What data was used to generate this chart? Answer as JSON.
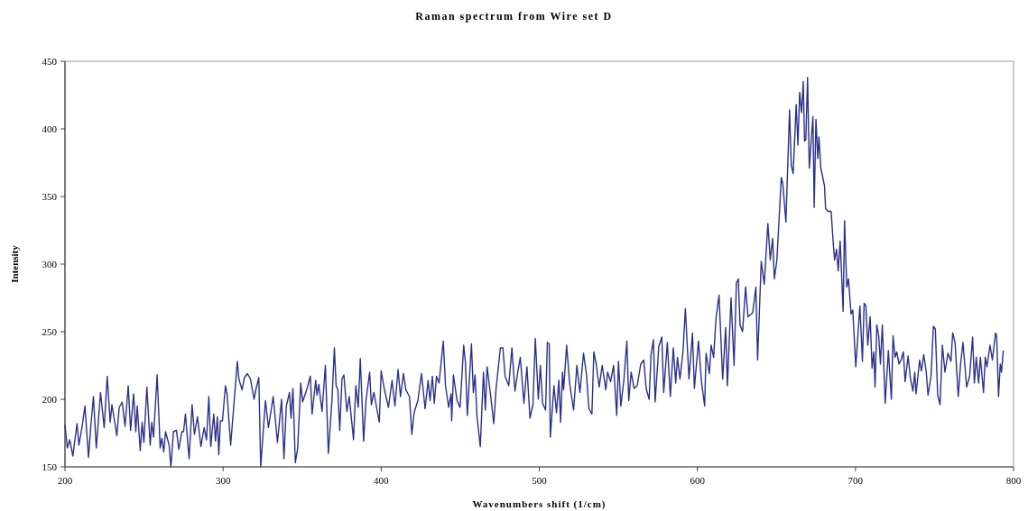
{
  "chart_data": {
    "type": "line",
    "title": "Raman spectrum from Wire set D",
    "xlabel": "Wavenumbers shift (1/cm)",
    "ylabel": "Intensity",
    "x": [
      200,
      201.5,
      203,
      205,
      207.6,
      208.8,
      211,
      212.6,
      214.9,
      216.4,
      218,
      219.8,
      222.5,
      224.8,
      226.7,
      228.6,
      229.7,
      232.8,
      234.3,
      236.2,
      238,
      240,
      241.5,
      243.4,
      244.8,
      245.7,
      247.6,
      248.8,
      249.9,
      251.8,
      253.9,
      254.9,
      256,
      258.3,
      260.2,
      261.3,
      262.5,
      263.6,
      265.9,
      267,
      268.6,
      270.5,
      272,
      273.9,
      275,
      276.2,
      278.5,
      280.4,
      281.9,
      283.8,
      286,
      288,
      289.5,
      291,
      292.2,
      294.1,
      295.2,
      296.4,
      297.3,
      298.3,
      299.6,
      301.5,
      302.5,
      304.8,
      306.7,
      309,
      310,
      312,
      313.5,
      315.4,
      317.3,
      319.6,
      320.7,
      322.6,
      323.8,
      324.9,
      326.8,
      328.7,
      331.7,
      334.4,
      337,
      338.5,
      340,
      342,
      343,
      344.2,
      345.7,
      347.2,
      349.1,
      350.3,
      352.9,
      355.2,
      356.3,
      358.6,
      359.4,
      360.5,
      362.6,
      364.7,
      366.6,
      368.9,
      370.4,
      371.5,
      372.6,
      373.8,
      375.2,
      376.4,
      378.3,
      379.8,
      382.5,
      384,
      385.5,
      386.8,
      388.9,
      390.4,
      392.7,
      393.8,
      395.4,
      398.8,
      400,
      401.9,
      404.6,
      406.9,
      408.7,
      410.7,
      412.2,
      414.1,
      415.6,
      417.9,
      419.4,
      420.8,
      423.2,
      425.5,
      427.8,
      429.7,
      430.9,
      432.4,
      433.6,
      435,
      436.6,
      439.3,
      440.7,
      442.7,
      444.2,
      444.6,
      445.7,
      448,
      449.9,
      452.2,
      453.3,
      454.5,
      457.1,
      458.3,
      459.4,
      460.6,
      462.7,
      464.7,
      465.9,
      467,
      469.3,
      471.2,
      472.7,
      475.4,
      477,
      478.4,
      480.7,
      482.7,
      484.6,
      486.1,
      488,
      490.3,
      492.2,
      494.1,
      496,
      497.5,
      499.4,
      500.7,
      502.1,
      504,
      505.1,
      506.3,
      507,
      509.3,
      510.9,
      512.4,
      513.5,
      514.7,
      515.4,
      517.3,
      519.2,
      521.7,
      523.8,
      525.7,
      528,
      529.9,
      531.4,
      533.3,
      534.5,
      536,
      537.9,
      539.8,
      542.1,
      543.2,
      545.1,
      547,
      549,
      550.1,
      551.6,
      553.5,
      555.4,
      556.6,
      558.1,
      560,
      561.9,
      564.2,
      566.1,
      567.6,
      569.5,
      570.7,
      572.2,
      573.3,
      575.6,
      577.5,
      578.7,
      581,
      582.9,
      584.8,
      586.3,
      587.4,
      589,
      590.9,
      592.4,
      594.7,
      596.9,
      598.1,
      600.7,
      602.6,
      604.6,
      605.5,
      607.6,
      608.7,
      610.3,
      611.8,
      613.7,
      616,
      617.9,
      619,
      621.3,
      623.2,
      624.7,
      625.9,
      627,
      628.6,
      630.5,
      632,
      635,
      637,
      638.1,
      640.4,
      642.3,
      644.6,
      646.1,
      647.6,
      648.7,
      650.3,
      653.1,
      654.1,
      656,
      658.3,
      659.4,
      660.6,
      662.5,
      663.6,
      664.7,
      665.9,
      667,
      667.8,
      668.6,
      669.7,
      670.8,
      673.1,
      673.9,
      675,
      676.2,
      676.9,
      678.1,
      680.4,
      681.1,
      682.7,
      684.6,
      686.1,
      686.8,
      688,
      689.1,
      690.3,
      691,
      692.2,
      693.1,
      694.5,
      695.6,
      697.2,
      698.3,
      700.2,
      702.8,
      704.4,
      705.5,
      706.6,
      707.8,
      709.3,
      710.5,
      711.6,
      712.4,
      713.5,
      714.7,
      715.8,
      717,
      718.8,
      720.8,
      722.7,
      723.8,
      725,
      726.1,
      727.6,
      728.8,
      730.3,
      731.4,
      733.3,
      734.8,
      736.4,
      737.5,
      738.3,
      740.6,
      741.7,
      743.2,
      744.8,
      745.9,
      747.8,
      749.3,
      750.5,
      752,
      753.5,
      755,
      756.6,
      758.5,
      760.4,
      761.5,
      763,
      765,
      766.5,
      768,
      770.3,
      772.2,
      774.1,
      775.2,
      776.4,
      777.9,
      779,
      781,
      782.1,
      783.2,
      785.1,
      786.6,
      788.6,
      789.3,
      790.5,
      791.6,
      792.4,
      793.5
    ],
    "series": [
      {
        "color": "#2b2f8f",
        "values": [
          181,
          164,
          170,
          158,
          182,
          166,
          181,
          195,
          157,
          181,
          202,
          164,
          205,
          179,
          217,
          183,
          196,
          173,
          194,
          198,
          180,
          210,
          177,
          204,
          176,
          195,
          162,
          183,
          168,
          209,
          166,
          183,
          172,
          218,
          164,
          171,
          161,
          176,
          166,
          150,
          176,
          177,
          163,
          176,
          176,
          189,
          156,
          196,
          174,
          187,
          165,
          179,
          170,
          202,
          165,
          189,
          169,
          187,
          159,
          184,
          184,
          210,
          204,
          166,
          194,
          228,
          215,
          207,
          216,
          219,
          215,
          200,
          207,
          216,
          150,
          168,
          199,
          179,
          202,
          168,
          200,
          156,
          195,
          205,
          186,
          208,
          153,
          164,
          212,
          198,
          207,
          217,
          189,
          214,
          203,
          211,
          191,
          225,
          160,
          200,
          238,
          210,
          207,
          177,
          215,
          218,
          191,
          202,
          170,
          210,
          194,
          230,
          169,
          199,
          220,
          196,
          205,
          183,
          221,
          208,
          194,
          214,
          195,
          222,
          202,
          219,
          207,
          202,
          174,
          190,
          199,
          219,
          193,
          214,
          199,
          217,
          197,
          217,
          212,
          243,
          210,
          194,
          204,
          184,
          218,
          199,
          194,
          240,
          227,
          188,
          241,
          205,
          218,
          187,
          165,
          220,
          192,
          224,
          202,
          182,
          208,
          238,
          238,
          217,
          210,
          238,
          206,
          218,
          231,
          197,
          224,
          186,
          196,
          245,
          200,
          225,
          197,
          192,
          242,
          241,
          172,
          210,
          190,
          214,
          183,
          220,
          207,
          240,
          212,
          192,
          225,
          205,
          234,
          218,
          193,
          189,
          235,
          226,
          209,
          225,
          207,
          220,
          213,
          225,
          188,
          228,
          195,
          214,
          243,
          199,
          220,
          208,
          210,
          226,
          229,
          208,
          200,
          233,
          244,
          198,
          239,
          246,
          205,
          242,
          202,
          238,
          212,
          231,
          215,
          235,
          267,
          215,
          249,
          208,
          243,
          213,
          195,
          234,
          219,
          240,
          231,
          260,
          277,
          215,
          253,
          210,
          275,
          225,
          286,
          289,
          255,
          250,
          283,
          261,
          264,
          283,
          229,
          302,
          285,
          330,
          303,
          319,
          289,
          303,
          364,
          359,
          331,
          414,
          373,
          367,
          418,
          388,
          427,
          412,
          435,
          391,
          392,
          438,
          371,
          409,
          342,
          407,
          378,
          394,
          371,
          358,
          341,
          339,
          339,
          313,
          303,
          311,
          295,
          317,
          299,
          265,
          332,
          283,
          289,
          263,
          266,
          224,
          269,
          228,
          271,
          269,
          240,
          261,
          223,
          235,
          209,
          255,
          247,
          226,
          255,
          197,
          236,
          200,
          247,
          231,
          235,
          226,
          229,
          235,
          213,
          232,
          215,
          206,
          220,
          204,
          229,
          221,
          233,
          220,
          203,
          217,
          254,
          252,
          203,
          196,
          240,
          220,
          234,
          228,
          249,
          242,
          202,
          226,
          242,
          209,
          217,
          246,
          212,
          231,
          212,
          231,
          205,
          231,
          224,
          240,
          229,
          249,
          247,
          202,
          226,
          220,
          236
        ]
      }
    ],
    "xlim": [
      200,
      800
    ],
    "xticks": [
      200,
      300,
      400,
      500,
      600,
      700,
      800
    ],
    "ylim": [
      150,
      450
    ],
    "yticks": [
      150,
      200,
      250,
      300,
      350,
      400,
      450
    ],
    "grid": false,
    "marker": "none",
    "line_style": "solid"
  }
}
